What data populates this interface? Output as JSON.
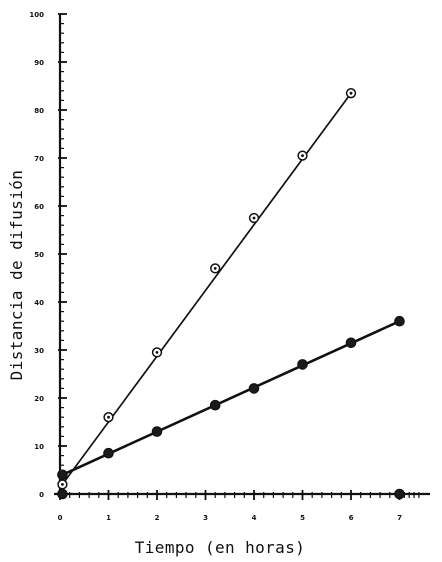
{
  "chart_data": {
    "type": "scatter",
    "title": "",
    "xlabel": "Tiempo (en horas)",
    "ylabel": "Distancia de difusión",
    "xlim": [
      0,
      7.5
    ],
    "ylim": [
      0,
      100
    ],
    "x_ticks": [
      0,
      1,
      2,
      3,
      4,
      5,
      6,
      7
    ],
    "x_tick_labels": [
      "0",
      "1",
      "2",
      "3",
      "4",
      "5",
      "6",
      "7"
    ],
    "y_ticks": [
      0,
      10,
      20,
      30,
      40,
      50,
      60,
      70,
      80,
      90,
      100
    ],
    "y_tick_labels": [
      "0",
      "10",
      "20",
      "30",
      "40",
      "50",
      "60",
      "70",
      "80",
      "90",
      "100"
    ],
    "grid": false,
    "legend": "none",
    "series": [
      {
        "marker": "open-circle",
        "fit_line": true,
        "points": [
          {
            "x": 0.05,
            "y": 2
          },
          {
            "x": 1,
            "y": 16
          },
          {
            "x": 2,
            "y": 29.5
          },
          {
            "x": 3.2,
            "y": 47
          },
          {
            "x": 4,
            "y": 57.5
          },
          {
            "x": 5,
            "y": 70.5
          },
          {
            "x": 6,
            "y": 83.5
          }
        ],
        "fit_from": [
          0.05,
          2
        ],
        "fit_to": [
          6,
          83.5
        ]
      },
      {
        "marker": "filled-circle",
        "fit_line": true,
        "points": [
          {
            "x": 0.05,
            "y": 4
          },
          {
            "x": 1,
            "y": 8.5
          },
          {
            "x": 2,
            "y": 13
          },
          {
            "x": 3.2,
            "y": 18.5
          },
          {
            "x": 4,
            "y": 22
          },
          {
            "x": 5,
            "y": 27
          },
          {
            "x": 6,
            "y": 31.5
          },
          {
            "x": 7,
            "y": 36
          }
        ],
        "fit_from": [
          0.05,
          4
        ],
        "fit_to": [
          7,
          36
        ]
      },
      {
        "marker": "filled-circle",
        "fit_line": false,
        "points": [
          {
            "x": 0.05,
            "y": 0
          },
          {
            "x": 7,
            "y": 0
          }
        ]
      }
    ]
  }
}
